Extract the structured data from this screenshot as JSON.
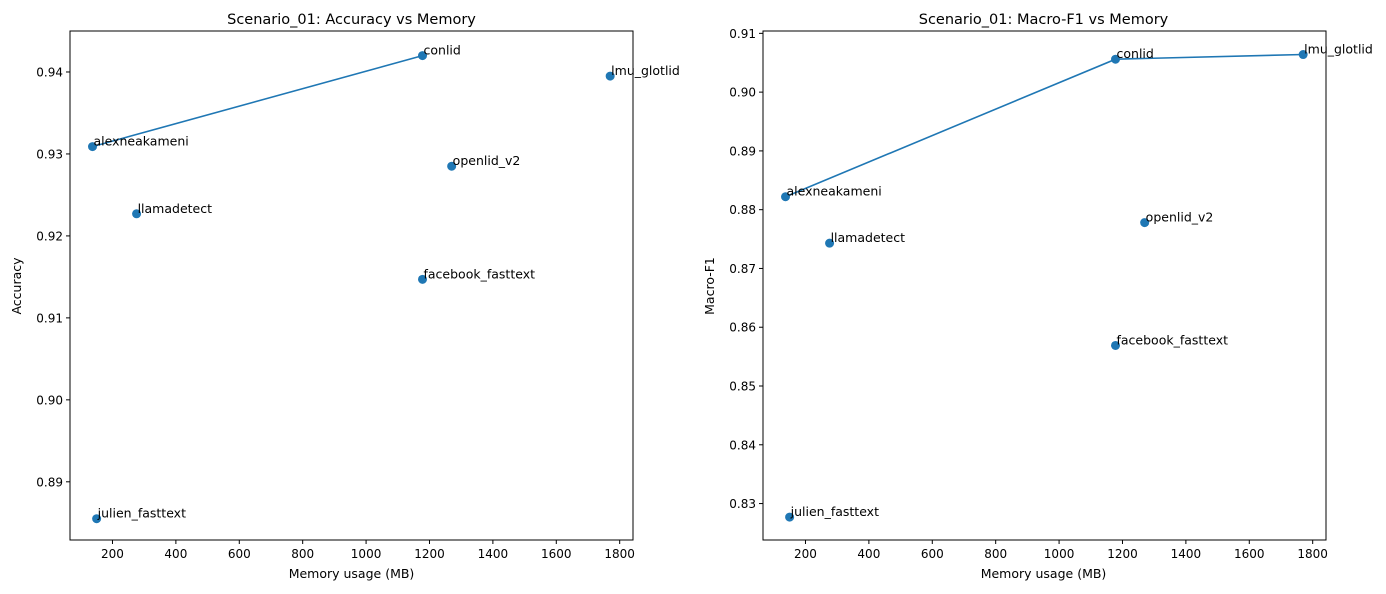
{
  "chart_data": [
    {
      "type": "scatter",
      "title": "Scenario_01: Accuracy vs Memory",
      "xlabel": "Memory usage (MB)",
      "ylabel": "Accuracy",
      "xlim": [
        66,
        1842
      ],
      "ylim": [
        0.8829,
        0.945
      ],
      "xticks": [
        200,
        400,
        600,
        800,
        1000,
        1200,
        1400,
        1600,
        1800
      ],
      "xtick_labels": [
        "200",
        "400",
        "600",
        "800",
        "1000",
        "1200",
        "1400",
        "1600",
        "1800"
      ],
      "yticks": [
        0.89,
        0.9,
        0.91,
        0.92,
        0.93,
        0.94
      ],
      "ytick_labels": [
        "0.89",
        "0.90",
        "0.91",
        "0.92",
        "0.93",
        "0.94"
      ],
      "grid": false,
      "color": "#1f77b4",
      "points": [
        {
          "label": "conlid",
          "x": 1178,
          "y": 0.942
        },
        {
          "label": "lmu_glotlid",
          "x": 1770,
          "y": 0.9395
        },
        {
          "label": "alexneakameni",
          "x": 137,
          "y": 0.9309
        },
        {
          "label": "openlid_v2",
          "x": 1270,
          "y": 0.9285
        },
        {
          "label": "llamadetect",
          "x": 276,
          "y": 0.9227
        },
        {
          "label": "facebook_fasttext",
          "x": 1178,
          "y": 0.9147
        },
        {
          "label": "julien_fasttext",
          "x": 150,
          "y": 0.8855
        }
      ],
      "frontier": [
        {
          "x": 137,
          "y": 0.9309
        },
        {
          "x": 1178,
          "y": 0.942
        }
      ]
    },
    {
      "type": "scatter",
      "title": "Scenario_01: Macro-F1 vs Memory",
      "xlabel": "Memory usage (MB)",
      "ylabel": "Macro-F1",
      "xlim": [
        66,
        1842
      ],
      "ylim": [
        0.8238,
        0.9104
      ],
      "xticks": [
        200,
        400,
        600,
        800,
        1000,
        1200,
        1400,
        1600,
        1800
      ],
      "xtick_labels": [
        "200",
        "400",
        "600",
        "800",
        "1000",
        "1200",
        "1400",
        "1600",
        "1800"
      ],
      "yticks": [
        0.83,
        0.84,
        0.85,
        0.86,
        0.87,
        0.88,
        0.89,
        0.9,
        0.91
      ],
      "ytick_labels": [
        "0.83",
        "0.84",
        "0.85",
        "0.86",
        "0.87",
        "0.88",
        "0.89",
        "0.90",
        "0.91"
      ],
      "grid": false,
      "color": "#1f77b4",
      "points": [
        {
          "label": "conlid",
          "x": 1178,
          "y": 0.9056
        },
        {
          "label": "lmu_glotlid",
          "x": 1770,
          "y": 0.9064
        },
        {
          "label": "alexneakameni",
          "x": 137,
          "y": 0.8822
        },
        {
          "label": "openlid_v2",
          "x": 1270,
          "y": 0.8778
        },
        {
          "label": "llamadetect",
          "x": 276,
          "y": 0.8743
        },
        {
          "label": "facebook_fasttext",
          "x": 1178,
          "y": 0.8569
        },
        {
          "label": "julien_fasttext",
          "x": 150,
          "y": 0.8277
        }
      ],
      "frontier": [
        {
          "x": 137,
          "y": 0.8822
        },
        {
          "x": 1178,
          "y": 0.9056
        },
        {
          "x": 1770,
          "y": 0.9064
        }
      ]
    }
  ]
}
